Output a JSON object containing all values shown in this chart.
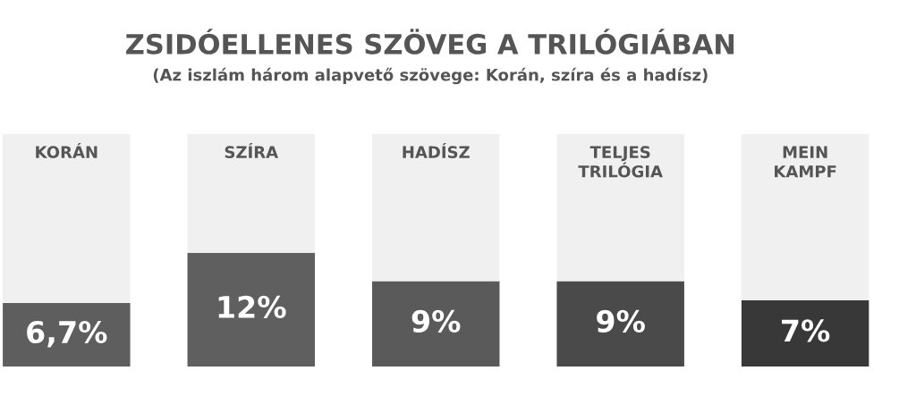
{
  "chart_data": {
    "type": "bar",
    "title": "ZSIDÓELLENES SZÖVEG A TRILÓGIÁBAN",
    "subtitle": "(Az iszlám három alapvető szövege: Korán, szíra és a hadísz)",
    "categories": [
      "KORÁN",
      "SZÍRA",
      "HADÍSZ",
      "TELJES\nTRILÓGIA",
      "MEIN\nKAMPF"
    ],
    "series": [
      {
        "colors": [
          "#5e5e5e",
          "#5f5f5f",
          "#5a5a5a",
          "#4a4a4a",
          "#383838"
        ],
        "values": [
          6.7,
          12,
          9,
          9,
          7
        ],
        "value_labels": [
          "6,7%",
          "12%",
          "9%",
          "9%",
          "7%"
        ]
      },
      {
        "color": "#f0f0f0",
        "values": [
          17.8,
          12.5,
          15.5,
          15.5,
          17.5
        ]
      }
    ],
    "stacked": true,
    "ylim": [
      0,
      24.5
    ],
    "legend": false
  }
}
